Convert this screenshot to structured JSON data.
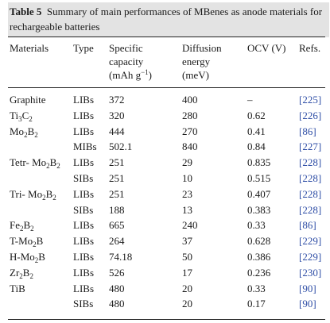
{
  "caption": {
    "label": "Table 5",
    "text": "Summary of main performances of MBenes as anode materials for rechargeable batteries"
  },
  "headers": {
    "materials": "Materials",
    "type": "Type",
    "capacity": "Specific capacity (mAh g⁻¹)",
    "diffusion": "Diffusion energy (meV)",
    "ocv": "OCV (V)",
    "refs": "Refs."
  },
  "rows": [
    {
      "material": "Graphite",
      "type": "LIBs",
      "capacity": "372",
      "diffusion": "400",
      "ocv": "–",
      "ref": "[225]"
    },
    {
      "material": "Ti₃C₂",
      "type": "LIBs",
      "capacity": "320",
      "diffusion": "280",
      "ocv": "0.62",
      "ref": "[226]"
    },
    {
      "material": "Mo₂B₂",
      "type": "LIBs",
      "capacity": "444",
      "diffusion": "270",
      "ocv": "0.41",
      "ref": "[86]"
    },
    {
      "material": "",
      "type": "MIBs",
      "capacity": "502.1",
      "diffusion": "840",
      "ocv": "0.84",
      "ref": "[227]"
    },
    {
      "material": "Tetr- Mo₂B₂",
      "type": "LIBs",
      "capacity": "251",
      "diffusion": "29",
      "ocv": "0.835",
      "ref": "[228]"
    },
    {
      "material": "",
      "type": "SIBs",
      "capacity": "251",
      "diffusion": "10",
      "ocv": "0.515",
      "ref": "[228]"
    },
    {
      "material": "Tri- Mo₂B₂",
      "type": "LIBs",
      "capacity": "251",
      "diffusion": "23",
      "ocv": "0.407",
      "ref": "[228]"
    },
    {
      "material": "",
      "type": "SIBs",
      "capacity": "188",
      "diffusion": "13",
      "ocv": "0.383",
      "ref": "[228]"
    },
    {
      "material": "Fe₂B₂",
      "type": "LIBs",
      "capacity": "665",
      "diffusion": "240",
      "ocv": "0.33",
      "ref": "[86]"
    },
    {
      "material": "T-Mo₂B",
      "type": "LIBs",
      "capacity": "264",
      "diffusion": "37",
      "ocv": "0.628",
      "ref": "[229]"
    },
    {
      "material": "H-Mo₂B",
      "type": "LIBs",
      "capacity": "74.18",
      "diffusion": "50",
      "ocv": "0.386",
      "ref": "[229]"
    },
    {
      "material": "Zr₂B₂",
      "type": "LIBs",
      "capacity": "526",
      "diffusion": "17",
      "ocv": "0.236",
      "ref": "[230]"
    },
    {
      "material": "TiB",
      "type": "LIBs",
      "capacity": "480",
      "diffusion": "20",
      "ocv": "0.33",
      "ref": "[90]"
    },
    {
      "material": "",
      "type": "SIBs",
      "capacity": "480",
      "diffusion": "20",
      "ocv": "0.17",
      "ref": "[90]"
    }
  ]
}
